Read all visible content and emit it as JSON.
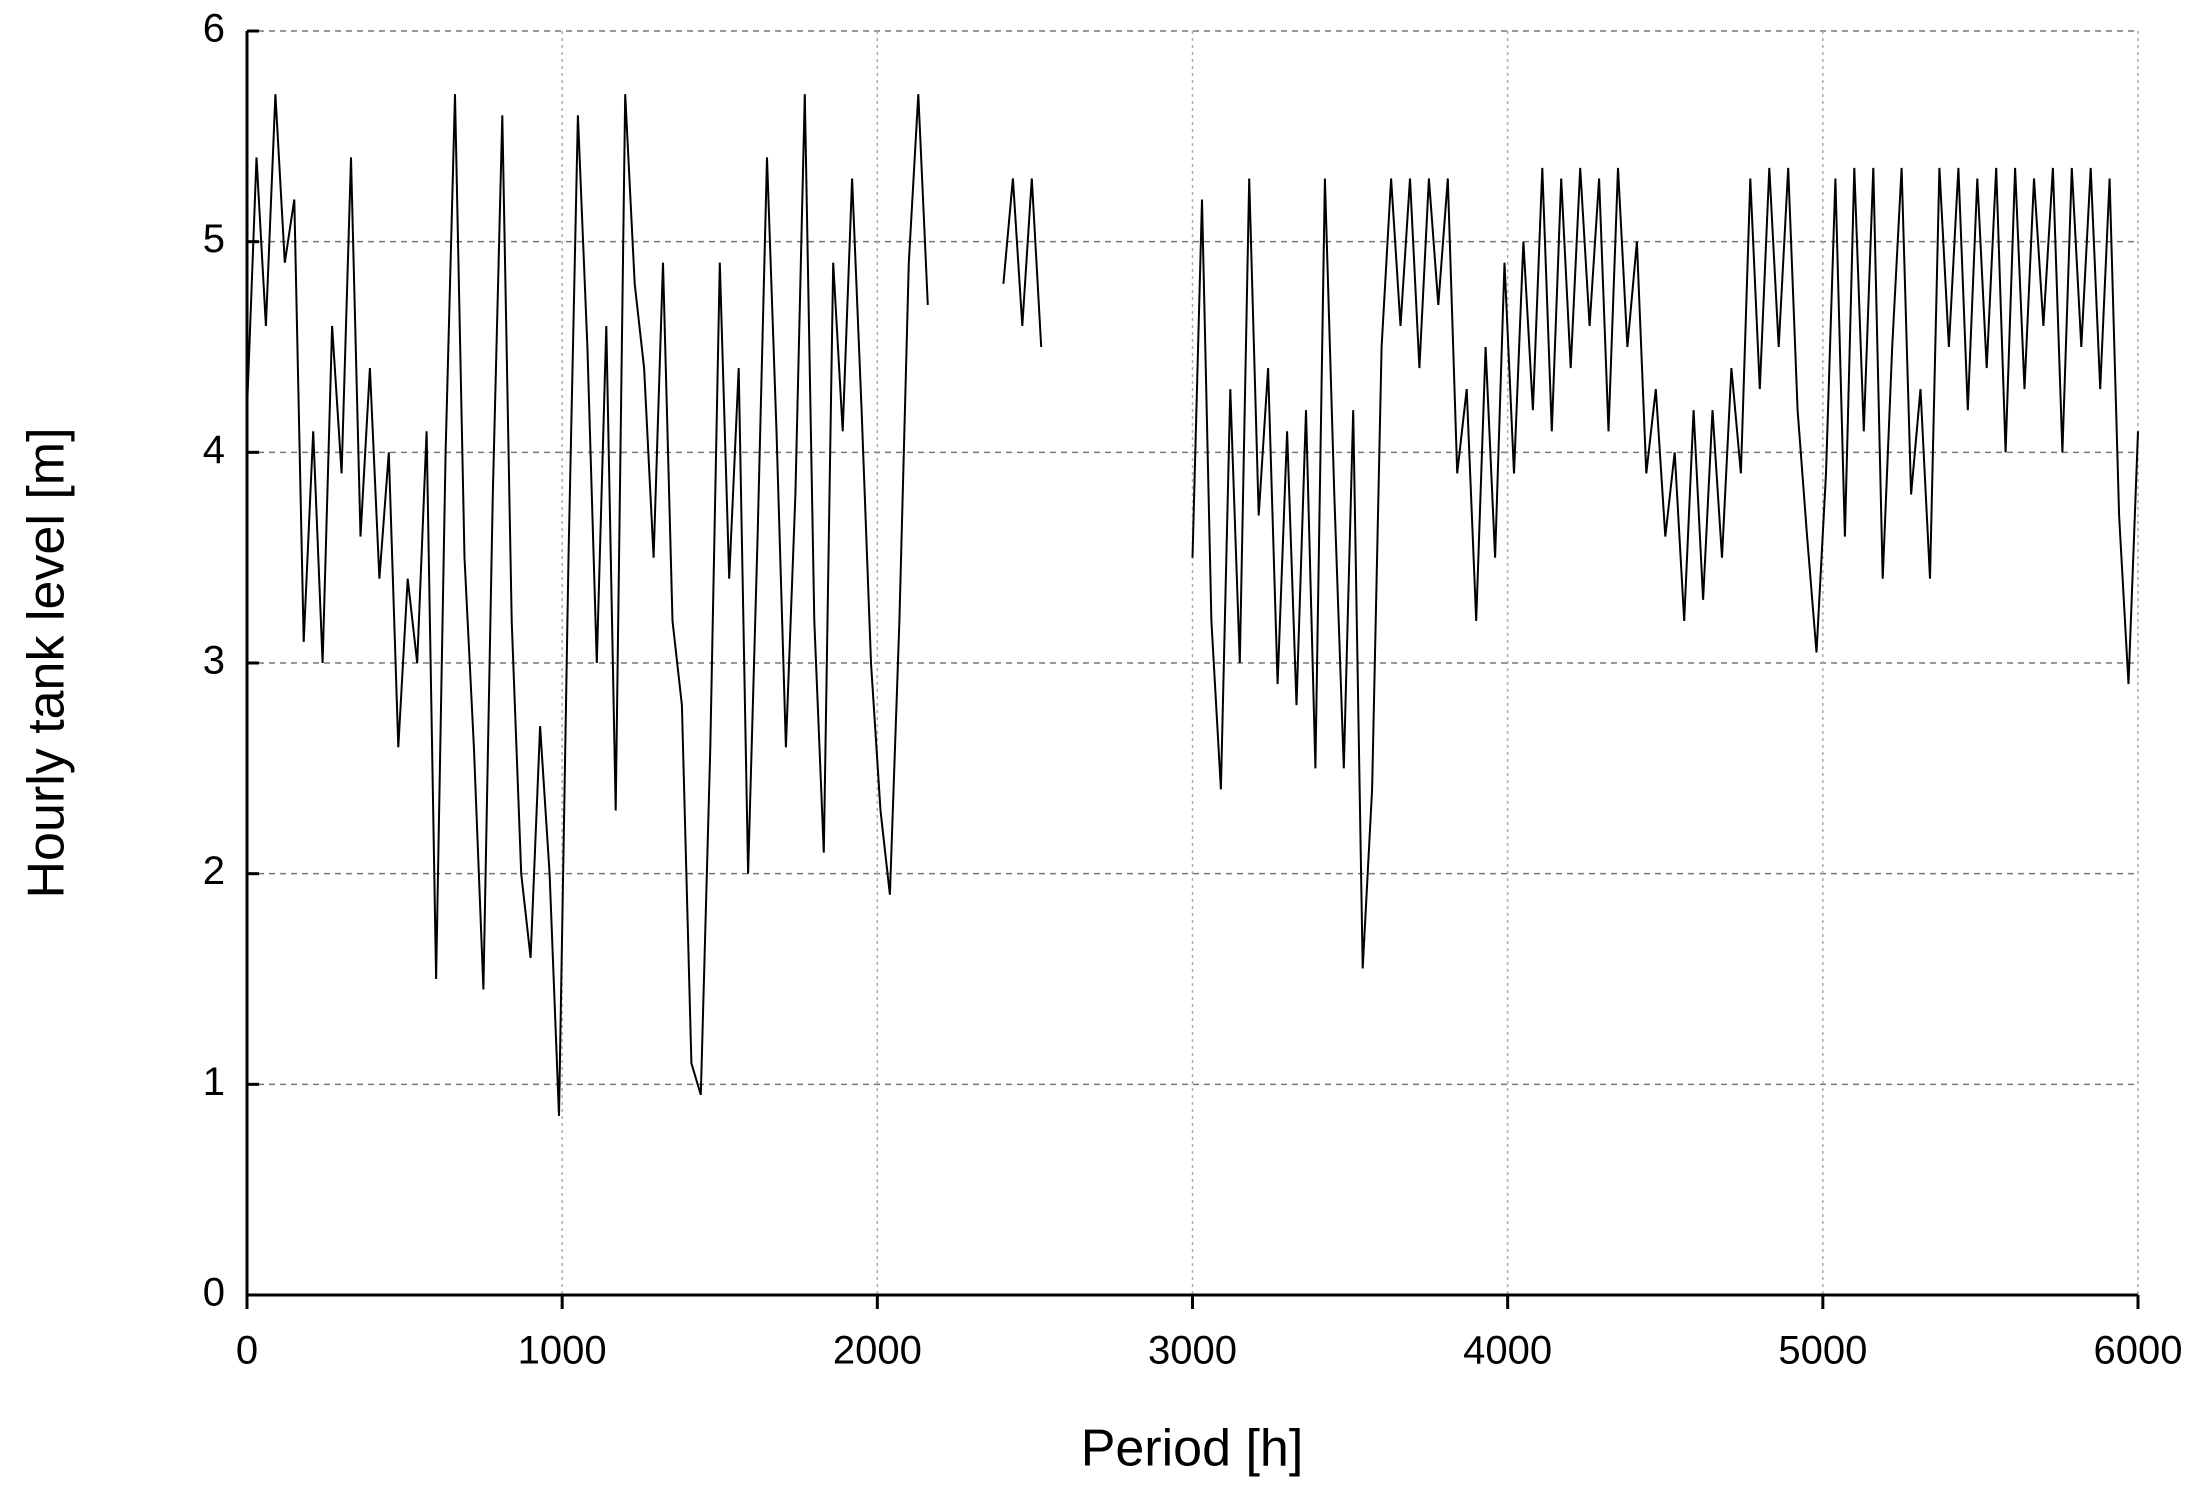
{
  "chart_data": {
    "type": "line",
    "xlabel": "Period  [h]",
    "ylabel": "Hourly tank level  [m]",
    "x": [
      0,
      30,
      60,
      90,
      120,
      150,
      180,
      210,
      240,
      270,
      300,
      330,
      360,
      390,
      420,
      450,
      480,
      510,
      540,
      570,
      600,
      630,
      660,
      690,
      720,
      750,
      780,
      810,
      840,
      870,
      900,
      930,
      960,
      990,
      1020,
      1050,
      1080,
      1110,
      1140,
      1170,
      1200,
      1230,
      1260,
      1290,
      1320,
      1350,
      1380,
      1410,
      1440,
      1470,
      1500,
      1530,
      1560,
      1590,
      1620,
      1650,
      1680,
      1710,
      1740,
      1770,
      1800,
      1830,
      1860,
      1890,
      1920,
      1950,
      1980,
      2010,
      2040,
      2070,
      2100,
      2130,
      2160,
      2190,
      2220,
      2250,
      2280,
      2310,
      2340,
      2370,
      2400,
      2430,
      2460,
      2490,
      2520,
      2550,
      2580,
      2610,
      2640,
      2670,
      2700,
      2730,
      2760,
      2790,
      2820,
      2850,
      2880,
      2910,
      2940,
      2970,
      3000,
      3030,
      3060,
      3090,
      3120,
      3150,
      3180,
      3210,
      3240,
      3270,
      3300,
      3330,
      3360,
      3390,
      3420,
      3450,
      3480,
      3510,
      3540,
      3570,
      3600,
      3630,
      3660,
      3690,
      3720,
      3750,
      3780,
      3810,
      3840,
      3870,
      3900,
      3930,
      3960,
      3990,
      4020,
      4050,
      4080,
      4110,
      4140,
      4170,
      4200,
      4230,
      4260,
      4290,
      4320,
      4350,
      4380,
      4410,
      4440,
      4470,
      4500,
      4530,
      4560,
      4590,
      4620,
      4650,
      4680,
      4710,
      4740,
      4770,
      4800,
      4830,
      4860,
      4890,
      4920,
      4950,
      4980,
      5010,
      5040,
      5070,
      5100,
      5130,
      5160,
      5190,
      5220,
      5250,
      5280,
      5310,
      5340,
      5370,
      5400,
      5430,
      5460,
      5490,
      5520,
      5550,
      5580,
      5610,
      5640,
      5670,
      5700,
      5730,
      5760,
      5790,
      5820,
      5850,
      5880,
      5910,
      5940,
      5970,
      6000
    ],
    "series": [
      {
        "color": "#000000",
        "values": [
          4.2,
          5.4,
          4.6,
          5.7,
          4.9,
          5.2,
          3.1,
          4.1,
          3.0,
          4.6,
          3.9,
          5.4,
          3.6,
          4.4,
          3.4,
          4.0,
          2.6,
          3.4,
          3.0,
          4.1,
          1.5,
          4.0,
          5.7,
          3.5,
          2.6,
          1.45,
          3.8,
          5.6,
          3.2,
          2.0,
          1.6,
          2.7,
          2.0,
          0.85,
          3.5,
          5.6,
          4.5,
          3.0,
          4.6,
          2.3,
          5.7,
          4.8,
          4.4,
          3.5,
          4.9,
          3.2,
          2.8,
          1.1,
          0.95,
          2.6,
          4.9,
          3.4,
          4.4,
          2.0,
          3.6,
          5.4,
          4.1,
          2.6,
          3.8,
          5.7,
          3.2,
          2.1,
          4.9,
          4.1,
          5.3,
          4.2,
          3.0,
          2.3,
          1.9,
          3.2,
          4.9,
          5.7,
          4.7,
          null,
          null,
          null,
          null,
          null,
          null,
          null,
          4.8,
          5.3,
          4.6,
          5.3,
          4.5,
          null,
          null,
          null,
          null,
          null,
          null,
          null,
          null,
          null,
          null,
          null,
          null,
          null,
          null,
          null,
          3.5,
          5.2,
          3.2,
          2.4,
          4.3,
          3.0,
          5.3,
          3.7,
          4.4,
          2.9,
          4.1,
          2.8,
          4.2,
          2.5,
          5.3,
          3.8,
          2.5,
          4.2,
          1.55,
          2.4,
          4.5,
          5.3,
          4.6,
          5.3,
          4.4,
          5.3,
          4.7,
          5.3,
          3.9,
          4.3,
          3.2,
          4.5,
          3.5,
          4.9,
          3.9,
          5.0,
          4.2,
          5.35,
          4.1,
          5.3,
          4.4,
          5.35,
          4.6,
          5.3,
          4.1,
          5.35,
          4.5,
          5.0,
          3.9,
          4.3,
          3.6,
          4.0,
          3.2,
          4.2,
          3.3,
          4.2,
          3.5,
          4.4,
          3.9,
          5.3,
          4.3,
          5.35,
          4.5,
          5.35,
          4.2,
          3.6,
          3.05,
          3.9,
          5.3,
          3.6,
          5.35,
          4.1,
          5.35,
          3.4,
          4.5,
          5.35,
          3.8,
          4.3,
          3.4,
          5.35,
          4.5,
          5.35,
          4.2,
          5.3,
          4.4,
          5.35,
          4.0,
          5.35,
          4.3,
          5.3,
          4.6,
          5.35,
          4.0,
          5.35,
          4.5,
          5.35,
          4.3,
          5.3,
          3.7,
          2.9,
          4.1
        ]
      }
    ],
    "xlim": [
      0,
      6000
    ],
    "xticks": [
      0,
      1000,
      2000,
      3000,
      4000,
      5000,
      6000
    ],
    "ylim": [
      0,
      6
    ],
    "yticks": [
      0,
      1,
      2,
      3,
      4,
      5,
      6
    ],
    "grid": true
  }
}
